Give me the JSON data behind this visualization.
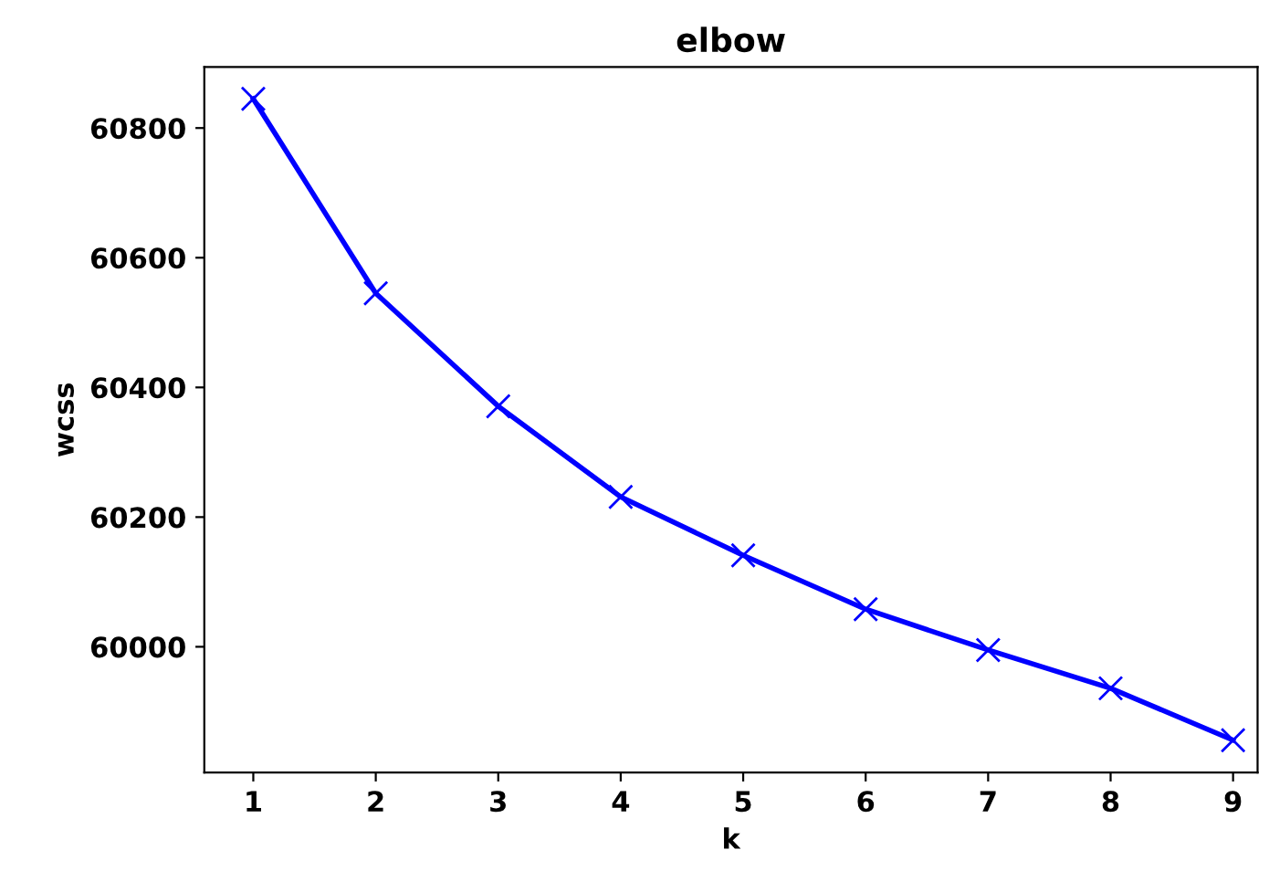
{
  "chart_data": {
    "type": "line",
    "title": "elbow",
    "xlabel": "k",
    "ylabel": "wcss",
    "x": [
      1,
      2,
      3,
      4,
      5,
      6,
      7,
      8,
      9
    ],
    "series": [
      {
        "color": "#0000ff",
        "values": [
          60845,
          60545,
          60371,
          60231,
          60141,
          60058,
          59995,
          59936,
          59856
        ]
      }
    ],
    "xlim": [
      0.6,
      9.2
    ],
    "xticks": [
      1,
      2,
      3,
      4,
      5,
      6,
      7,
      8,
      9
    ],
    "ylim": [
      59806,
      60894
    ],
    "yticks": [
      60000,
      60200,
      60400,
      60600,
      60800
    ],
    "marker": "cross",
    "line_style": "solid",
    "grid": false,
    "legend": false
  }
}
